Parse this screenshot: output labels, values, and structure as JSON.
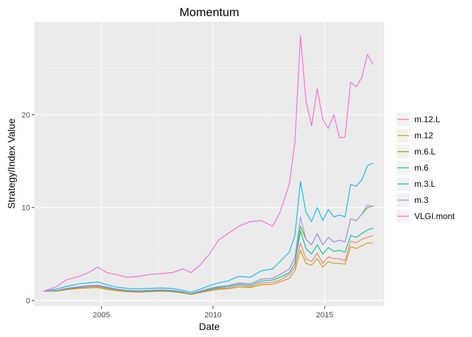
{
  "chart_data": {
    "type": "line",
    "title": "Momentum",
    "xlabel": "Date",
    "ylabel": "Strategy/Index Value",
    "x_axis_kind": "date",
    "xlim": [
      "2002-01-01",
      "2017-09-01"
    ],
    "ylim": [
      -0.6,
      30
    ],
    "x_ticks": [
      {
        "date": "2005-01-01",
        "label": "2005"
      },
      {
        "date": "2010-01-01",
        "label": "2010"
      },
      {
        "date": "2015-01-01",
        "label": "2015"
      }
    ],
    "y_ticks": [
      {
        "value": 0,
        "label": "0"
      },
      {
        "value": 10,
        "label": "10"
      },
      {
        "value": 20,
        "label": "20"
      }
    ],
    "grid": true,
    "legend_position": "right",
    "x": [
      "2002-06-01",
      "2003-01-01",
      "2003-06-01",
      "2004-01-01",
      "2004-06-01",
      "2004-11-01",
      "2005-04-01",
      "2005-09-01",
      "2006-03-01",
      "2006-09-01",
      "2007-03-01",
      "2007-09-01",
      "2008-03-01",
      "2008-09-01",
      "2009-01-01",
      "2009-06-01",
      "2009-11-01",
      "2010-04-01",
      "2010-09-01",
      "2011-03-01",
      "2011-09-01",
      "2012-03-01",
      "2012-09-01",
      "2013-01-01",
      "2013-06-01",
      "2013-09-01",
      "2013-12-01",
      "2014-03-01",
      "2014-06-01",
      "2014-09-01",
      "2014-12-01",
      "2015-03-01",
      "2015-06-01",
      "2015-09-01",
      "2015-12-01",
      "2016-03-01",
      "2016-06-01",
      "2016-09-01",
      "2016-12-01",
      "2017-03-01"
    ],
    "series": [
      {
        "name": "m.12.L",
        "color": "#F8766D",
        "values": [
          1.0,
          1.05,
          1.2,
          1.38,
          1.45,
          1.5,
          1.3,
          1.15,
          1.0,
          0.95,
          1.0,
          1.05,
          1.0,
          0.85,
          0.7,
          0.9,
          1.1,
          1.3,
          1.35,
          1.6,
          1.5,
          1.9,
          1.95,
          2.2,
          2.8,
          3.6,
          6.2,
          4.5,
          4.2,
          5.1,
          4.0,
          4.7,
          4.5,
          4.5,
          4.3,
          6.4,
          6.2,
          6.6,
          6.8,
          7.0
        ]
      },
      {
        "name": "m.12",
        "color": "#C49A00",
        "values": [
          1.0,
          1.0,
          1.15,
          1.3,
          1.35,
          1.4,
          1.2,
          1.05,
          0.95,
          0.9,
          0.95,
          1.0,
          0.95,
          0.8,
          0.65,
          0.85,
          1.05,
          1.2,
          1.25,
          1.45,
          1.4,
          1.7,
          1.75,
          2.0,
          2.4,
          3.2,
          5.4,
          4.0,
          3.8,
          4.5,
          3.6,
          4.2,
          4.0,
          4.0,
          3.9,
          5.8,
          5.6,
          5.9,
          6.2,
          6.2
        ]
      },
      {
        "name": "m.6.L",
        "color": "#53B400",
        "values": [
          1.0,
          1.1,
          1.3,
          1.5,
          1.6,
          1.65,
          1.45,
          1.25,
          1.1,
          1.05,
          1.1,
          1.15,
          1.1,
          0.95,
          0.75,
          1.0,
          1.3,
          1.5,
          1.6,
          1.9,
          1.8,
          2.3,
          2.4,
          2.8,
          3.4,
          4.6,
          8.0,
          6.6,
          6.0,
          7.2,
          6.0,
          6.8,
          6.3,
          6.5,
          6.3,
          8.8,
          8.6,
          9.3,
          10.0,
          10.2
        ]
      },
      {
        "name": "m.6",
        "color": "#00C094",
        "values": [
          1.0,
          1.08,
          1.25,
          1.45,
          1.55,
          1.6,
          1.4,
          1.2,
          1.05,
          1.0,
          1.05,
          1.1,
          1.05,
          0.9,
          0.72,
          0.95,
          1.2,
          1.4,
          1.5,
          1.75,
          1.65,
          2.1,
          2.2,
          2.5,
          3.0,
          4.0,
          7.5,
          5.6,
          5.0,
          6.0,
          5.0,
          5.7,
          5.3,
          5.4,
          5.2,
          7.0,
          6.8,
          7.2,
          7.6,
          7.8
        ]
      },
      {
        "name": "m.3.L",
        "color": "#00B6EB",
        "values": [
          1.0,
          1.25,
          1.5,
          1.8,
          1.9,
          2.0,
          1.7,
          1.45,
          1.3,
          1.25,
          1.3,
          1.35,
          1.3,
          1.1,
          0.9,
          1.2,
          1.6,
          1.9,
          2.1,
          2.6,
          2.5,
          3.2,
          3.4,
          4.2,
          5.2,
          7.0,
          12.8,
          9.5,
          8.5,
          10.0,
          8.6,
          9.8,
          9.0,
          9.2,
          9.0,
          12.5,
          12.3,
          13.0,
          14.5,
          14.8
        ]
      },
      {
        "name": "m.3",
        "color": "#A58AFF",
        "values": [
          1.0,
          1.1,
          1.3,
          1.5,
          1.6,
          1.65,
          1.45,
          1.25,
          1.1,
          1.05,
          1.1,
          1.15,
          1.1,
          0.95,
          0.75,
          1.0,
          1.3,
          1.5,
          1.6,
          1.9,
          1.8,
          2.3,
          2.4,
          2.8,
          3.4,
          4.6,
          9.0,
          6.6,
          6.0,
          7.2,
          6.0,
          6.8,
          6.3,
          6.5,
          6.3,
          8.8,
          8.6,
          9.3,
          10.3,
          10.1
        ]
      },
      {
        "name": "VLGI.mont",
        "color": "#FB61D7",
        "values": [
          1.0,
          1.5,
          2.2,
          2.6,
          3.0,
          3.6,
          3.0,
          2.8,
          2.5,
          2.6,
          2.8,
          2.9,
          3.0,
          3.4,
          3.0,
          3.8,
          5.0,
          6.5,
          7.2,
          8.0,
          8.5,
          8.6,
          8.0,
          9.5,
          12.5,
          17.0,
          28.5,
          21.5,
          18.8,
          22.8,
          19.5,
          18.5,
          20.0,
          17.5,
          17.6,
          23.5,
          23.0,
          24.0,
          26.5,
          25.4
        ]
      }
    ]
  }
}
